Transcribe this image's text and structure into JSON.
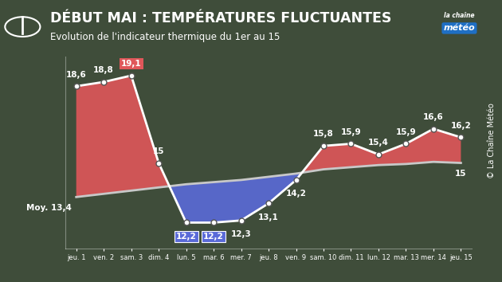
{
  "chart_data": {
    "type": "line",
    "title": "DÉBUT MAI : TEMPÉRATURES FLUCTUANTES",
    "subtitle": "Evolution de l'indicateur thermique du 1er au 15",
    "logo": [
      "la chaîne",
      "météo"
    ],
    "source": "© La Chaîne Météo",
    "categories": [
      "jeu. 1",
      "ven. 2",
      "sam. 3",
      "dim. 4",
      "lun. 5",
      "mar. 6",
      "mer. 7",
      "jeu. 8",
      "ven. 9",
      "sam. 10",
      "dim. 11",
      "lun. 12",
      "mar. 13",
      "mer. 14",
      "jeu. 15"
    ],
    "series": [
      {
        "name": "Indicateur thermique",
        "color": "#ffffff",
        "marker": "circle",
        "line_style": "solid",
        "values": [
          18.6,
          18.8,
          19.1,
          15,
          12.2,
          12.2,
          12.3,
          13.1,
          14.2,
          15.8,
          15.9,
          15.4,
          15.9,
          16.6,
          16.2
        ],
        "value_labels": [
          "18,6",
          "18,8",
          "19,1",
          "15",
          "12,2",
          "12,2",
          "12,3",
          "13,1",
          "14,2",
          "15,8",
          "15,9",
          "15,4",
          "15,9",
          "16,6",
          "16,2"
        ]
      },
      {
        "name": "Moy.",
        "color": "#c8c8c8",
        "marker": "none",
        "line_style": "solid",
        "values": [
          13.4,
          13.55,
          13.7,
          13.85,
          14.0,
          14.1,
          14.2,
          14.35,
          14.5,
          14.7,
          14.8,
          14.9,
          14.95,
          15.05,
          15.0
        ],
        "value_labels": [
          "13,4",
          null,
          null,
          null,
          null,
          null,
          null,
          null,
          null,
          null,
          null,
          null,
          null,
          null,
          "15"
        ]
      }
    ],
    "ylim": [
      11,
      20
    ],
    "yticks": [],
    "data_labels": true,
    "tick_labels": "x",
    "grid": false
  }
}
